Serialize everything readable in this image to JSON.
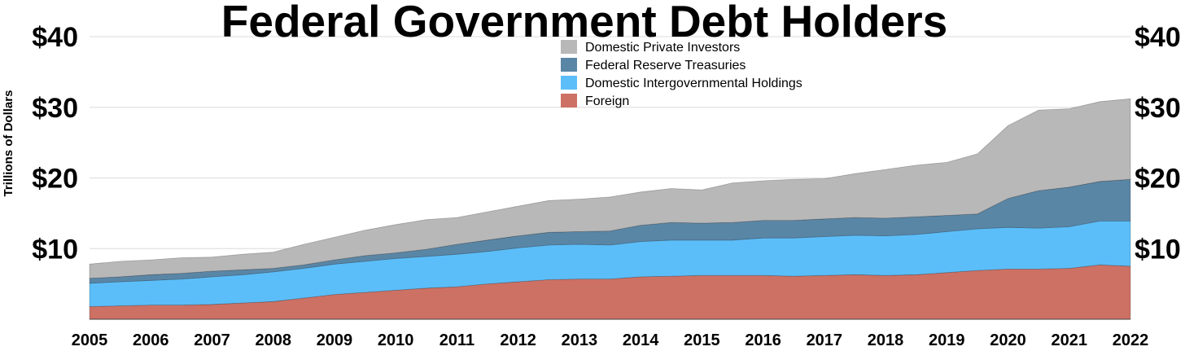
{
  "chart_data": {
    "type": "area",
    "stacked": true,
    "title": "Federal Government Debt Holders",
    "ylabel": "Trillions of Dollars",
    "xlabel": "",
    "xlim": [
      2005,
      2022
    ],
    "ylim": [
      0,
      40
    ],
    "x_ticks": [
      "2005",
      "2006",
      "2007",
      "2008",
      "2009",
      "2010",
      "2011",
      "2012",
      "2013",
      "2014",
      "2015",
      "2016",
      "2017",
      "2018",
      "2019",
      "2020",
      "2021",
      "2022"
    ],
    "y_ticks": [
      {
        "value": 10,
        "label": "$10"
      },
      {
        "value": 20,
        "label": "$20"
      },
      {
        "value": 30,
        "label": "$30"
      },
      {
        "value": 40,
        "label": "$40"
      }
    ],
    "y_ticks_right": true,
    "grid": "horizontal",
    "legend_position": "top-center",
    "x": [
      2005,
      2005.5,
      2006,
      2006.5,
      2007,
      2007.5,
      2008,
      2008.5,
      2009,
      2009.5,
      2010,
      2010.5,
      2011,
      2011.5,
      2012,
      2012.5,
      2013,
      2013.5,
      2014,
      2014.5,
      2015,
      2015.5,
      2016,
      2016.5,
      2017,
      2017.5,
      2018,
      2018.5,
      2019,
      2019.5,
      2020,
      2020.5,
      2021,
      2021.5,
      2022
    ],
    "series": [
      {
        "name": "Foreign",
        "color": "#cd7164",
        "values": [
          1.8,
          1.9,
          2.0,
          2.0,
          2.1,
          2.3,
          2.5,
          3.0,
          3.5,
          3.8,
          4.1,
          4.4,
          4.6,
          5.0,
          5.3,
          5.6,
          5.7,
          5.7,
          6.0,
          6.1,
          6.2,
          6.2,
          6.2,
          6.1,
          6.2,
          6.3,
          6.2,
          6.3,
          6.6,
          6.9,
          7.1,
          7.1,
          7.2,
          7.7,
          7.5
        ]
      },
      {
        "name": "Domestic Intergovernmental Holdings",
        "color": "#5cbef9",
        "values": [
          3.3,
          3.4,
          3.5,
          3.7,
          3.9,
          4.0,
          4.2,
          4.2,
          4.3,
          4.4,
          4.5,
          4.5,
          4.6,
          4.6,
          4.8,
          4.9,
          4.9,
          4.8,
          5.0,
          5.1,
          5.0,
          5.0,
          5.3,
          5.4,
          5.5,
          5.6,
          5.6,
          5.7,
          5.8,
          5.9,
          5.9,
          5.8,
          5.9,
          6.2,
          6.4
        ]
      },
      {
        "name": "Federal Reserve Treasuries",
        "color": "#5a86a6",
        "values": [
          0.7,
          0.7,
          0.8,
          0.8,
          0.8,
          0.7,
          0.5,
          0.5,
          0.6,
          0.8,
          0.8,
          1.0,
          1.4,
          1.6,
          1.7,
          1.8,
          1.8,
          2.0,
          2.3,
          2.5,
          2.4,
          2.5,
          2.5,
          2.5,
          2.5,
          2.5,
          2.5,
          2.5,
          2.3,
          2.1,
          4.1,
          5.3,
          5.6,
          5.6,
          5.9
        ]
      },
      {
        "name": "Domestic Private Investors",
        "color": "#b8b8b8",
        "values": [
          2.0,
          2.2,
          2.1,
          2.2,
          2.0,
          2.2,
          2.3,
          2.9,
          3.2,
          3.6,
          4.0,
          4.2,
          3.8,
          4.0,
          4.2,
          4.5,
          4.6,
          4.8,
          4.7,
          4.8,
          4.7,
          5.6,
          5.6,
          5.8,
          5.7,
          6.2,
          6.9,
          7.3,
          7.5,
          8.5,
          10.3,
          11.4,
          11.1,
          11.3,
          11.4
        ]
      }
    ]
  }
}
